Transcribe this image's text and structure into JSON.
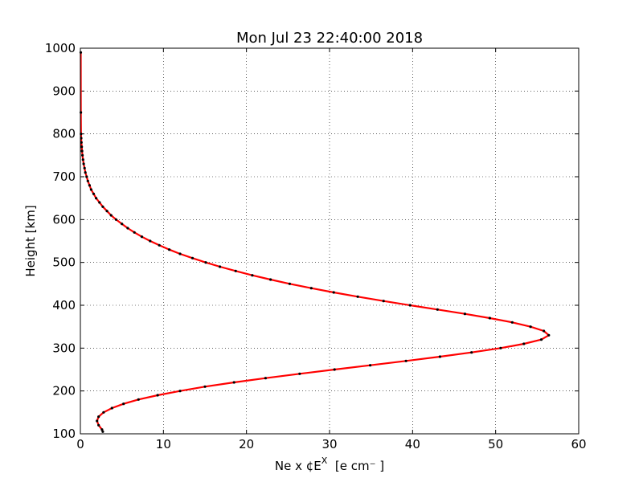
{
  "chart_data": {
    "type": "line",
    "title": "Mon Jul 23 22:40:00 2018",
    "xlabel_base": "Ne x ¢E",
    "xlabel_sup": "X",
    "xlabel_unit": "  [e cm⁻ ]",
    "ylabel": "Height [km]",
    "xlim": [
      0,
      60
    ],
    "ylim": [
      100,
      1000
    ],
    "xticks": [
      "0",
      "10",
      "20",
      "30",
      "40",
      "50",
      "60"
    ],
    "yticks": [
      "100",
      "200",
      "300",
      "400",
      "500",
      "600",
      "700",
      "800",
      "900",
      "1000"
    ],
    "xtick_values": [
      0,
      10,
      20,
      30,
      40,
      50,
      60
    ],
    "ytick_values": [
      100,
      200,
      300,
      400,
      500,
      600,
      700,
      800,
      900,
      1000
    ],
    "grid": true,
    "line_color": "#ff0000",
    "marker_color": "#000000",
    "series": [
      {
        "x": [
          2.7,
          2.6,
          2.2,
          2.0,
          2.2,
          2.8,
          3.8,
          5.2,
          7.0,
          9.3,
          12.0,
          15.0,
          18.5,
          22.3,
          26.4,
          30.6,
          34.9,
          39.2,
          43.3,
          47.1,
          50.6,
          53.4,
          55.5,
          56.4,
          55.8,
          54.2,
          52.0,
          49.3,
          46.3,
          43.0,
          39.7,
          36.5,
          33.4,
          30.5,
          27.8,
          25.2,
          22.9,
          20.7,
          18.7,
          16.8,
          15.1,
          13.5,
          12.0,
          10.7,
          9.5,
          8.4,
          7.4,
          6.5,
          5.7,
          5.0,
          4.3,
          3.7,
          3.2,
          2.7,
          2.3,
          1.9,
          1.6,
          1.3,
          1.1,
          0.9,
          0.75,
          0.6,
          0.5,
          0.4,
          0.32,
          0.25,
          0.2,
          0.16,
          0.13,
          0.1,
          0.08,
          0.06,
          0.05
        ],
        "y": [
          105,
          110,
          120,
          130,
          140,
          150,
          160,
          170,
          180,
          190,
          200,
          210,
          220,
          230,
          240,
          250,
          260,
          270,
          280,
          290,
          300,
          310,
          320,
          330,
          340,
          350,
          360,
          370,
          380,
          390,
          400,
          410,
          420,
          430,
          440,
          450,
          460,
          470,
          480,
          490,
          500,
          510,
          520,
          530,
          540,
          550,
          560,
          570,
          580,
          590,
          600,
          610,
          620,
          630,
          640,
          650,
          660,
          670,
          680,
          690,
          700,
          710,
          720,
          730,
          740,
          750,
          760,
          770,
          780,
          790,
          800,
          850,
          990
        ]
      }
    ]
  }
}
